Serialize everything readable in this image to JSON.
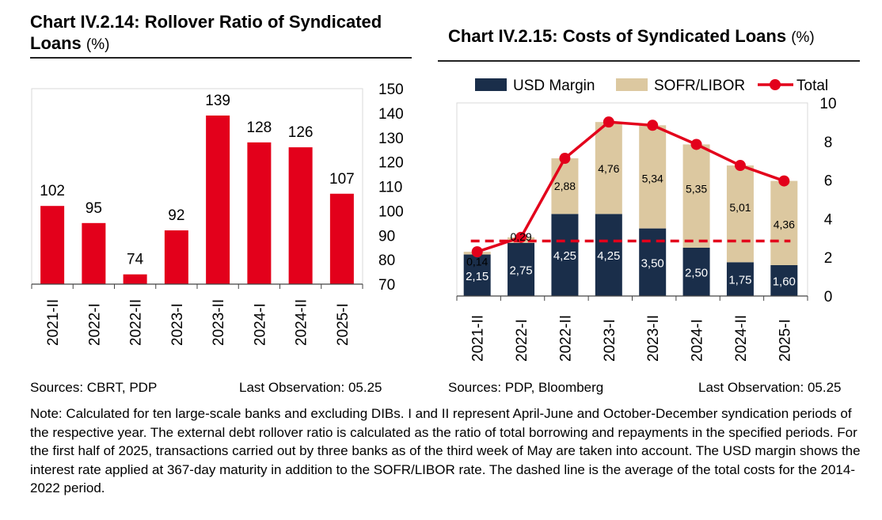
{
  "chart1": {
    "title": "Chart IV.2.14: Rollover Ratio of Syndicated Loans",
    "unit": "(%)",
    "sources": "Sources: CBRT, PDP",
    "last_observation": "Last Observation: 05.25"
  },
  "chart2": {
    "title": "Chart IV.2.15: Costs of Syndicated Loans",
    "unit": "(%)",
    "sources": "Sources: PDP, Bloomberg",
    "last_observation": "Last Observation: 05.25"
  },
  "note": "Note: Calculated for ten large-scale banks and excluding DIBs. I and II represent April-June and October-December syndication periods of the respective year. The external debt rollover ratio is calculated as the ratio of total borrowing and repayments in the specified periods. For the first half of 2025, transactions carried out by three banks as of the third week of May are taken into account. The USD margin shows the interest rate applied at 367-day maturity in addition to the SOFR/LIBOR rate. The dashed line is the average of the total costs for the 2014-2022 period.",
  "colors": {
    "bar_red": "#e3001b",
    "usd_margin": "#1a2e4a",
    "sofr_libor": "#dcc8a0",
    "total_line": "#e3001b"
  },
  "chart_data": [
    {
      "type": "bar",
      "categories": [
        "2021-II",
        "2022-I",
        "2022-II",
        "2023-I",
        "2023-II",
        "2024-I",
        "2024-II",
        "2025-I"
      ],
      "values": [
        102,
        95,
        74,
        92,
        139,
        128,
        126,
        107
      ],
      "ylim": [
        70,
        150
      ],
      "yticks": [
        70,
        80,
        90,
        100,
        110,
        120,
        130,
        140,
        150
      ],
      "y_axis_side": "right",
      "grid": false
    },
    {
      "type": "bar",
      "stacked": true,
      "categories": [
        "2021-II",
        "2022-I",
        "2022-II",
        "2023-I",
        "2023-II",
        "2024-I",
        "2024-II",
        "2025-I"
      ],
      "series": [
        {
          "name": "USD Margin",
          "values": [
            2.15,
            2.75,
            4.25,
            4.25,
            3.5,
            2.5,
            1.75,
            1.6
          ],
          "labels": [
            "2,15",
            "2,75",
            "4,25",
            "4,25",
            "3,50",
            "2,50",
            "1,75",
            "1,60"
          ]
        },
        {
          "name": "SOFR/LIBOR",
          "values": [
            0.14,
            0.29,
            2.88,
            4.76,
            5.34,
            5.35,
            5.01,
            4.36
          ],
          "labels": [
            "0,14",
            "0,29",
            "2,88",
            "4,76",
            "5,34",
            "5,35",
            "5,01",
            "4,36"
          ]
        },
        {
          "name": "Total",
          "type": "line",
          "values": [
            2.29,
            3.04,
            7.13,
            9.01,
            8.84,
            7.85,
            6.76,
            5.96
          ]
        }
      ],
      "average_dashed": 2.85,
      "ylim": [
        0,
        10
      ],
      "yticks": [
        0,
        2,
        4,
        6,
        8,
        10
      ],
      "y_axis_side": "right",
      "legend": "top",
      "grid": false
    }
  ]
}
